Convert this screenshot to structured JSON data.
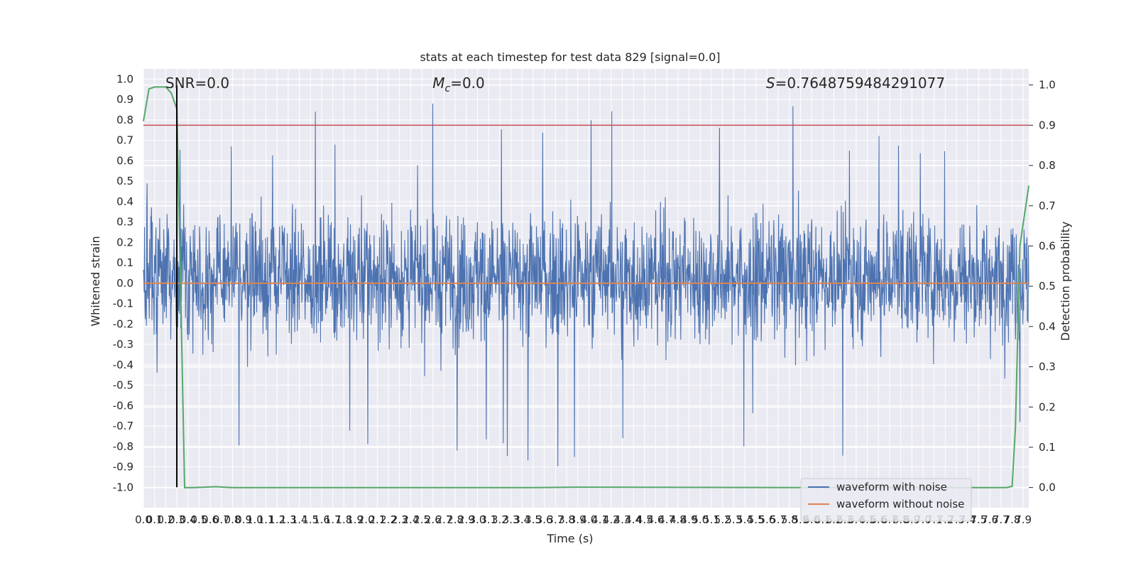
{
  "chart_data": {
    "type": "line",
    "title": "stats at each timestep for test data 829 [signal=0.0]",
    "xlabel": "Time (s)",
    "ylabel_left": "Whitened strain",
    "ylabel_right": "Detection probability",
    "xlim": [
      0.0,
      7.95
    ],
    "ylim_left": [
      -1.1,
      1.05
    ],
    "ylim_right": [
      -0.05,
      1.04
    ],
    "x_ticks": [
      "0.0",
      "0.1",
      "0.2",
      "0.3",
      "0.4",
      "0.5",
      "0.6",
      "0.7",
      "0.8",
      "0.9",
      "1.0",
      "1.1",
      "1.2",
      "1.3",
      "1.4",
      "1.5",
      "1.6",
      "1.7",
      "1.8",
      "1.9",
      "2.0",
      "2.1",
      "2.2",
      "2.3",
      "2.4",
      "2.5",
      "2.6",
      "2.7",
      "2.8",
      "2.9",
      "3.0",
      "3.1",
      "3.2",
      "3.3",
      "3.4",
      "3.5",
      "3.6",
      "3.7",
      "3.8",
      "3.9",
      "4.0",
      "4.1",
      "4.2",
      "4.3",
      "4.4",
      "4.5",
      "4.6",
      "4.7",
      "4.8",
      "4.9",
      "5.0",
      "5.1",
      "5.2",
      "5.3",
      "5.4",
      "5.5",
      "5.6",
      "5.7",
      "5.8",
      "5.9",
      "6.0",
      "6.1",
      "6.2",
      "6.3",
      "6.4",
      "6.5",
      "6.6",
      "6.7",
      "6.8",
      "6.9",
      "7.0",
      "7.1",
      "7.2",
      "7.3",
      "7.4",
      "7.5",
      "7.6",
      "7.7",
      "7.8",
      "7.9"
    ],
    "y_ticks_left": [
      "1.0",
      "0.9",
      "0.8",
      "0.7",
      "0.6",
      "0.5",
      "0.4",
      "0.3",
      "0.2",
      "0.1",
      "0.0",
      "-0.1",
      "-0.2",
      "-0.3",
      "-0.4",
      "-0.5",
      "-0.6",
      "-0.7",
      "-0.8",
      "-0.9",
      "-1.0"
    ],
    "y_ticks_right": [
      "1.0",
      "0.9",
      "0.8",
      "0.7",
      "0.6",
      "0.5",
      "0.4",
      "0.3",
      "0.2",
      "0.1",
      "0.0"
    ],
    "annotations": {
      "snr": "SNR=0.0",
      "mc_symbol": "M",
      "mc_subscript": "c",
      "mc_value": "=0.0",
      "s_symbol": "S",
      "s_value": "=0.7648759484291077"
    },
    "threshold_line": {
      "axis": "right",
      "y": 0.9,
      "color": "#c44e52"
    },
    "marker_line": {
      "x": 0.3,
      "y_range": [
        -1.0,
        0.97
      ],
      "color": "#000000"
    },
    "series": [
      {
        "name": "waveform with noise",
        "axis": "left",
        "color": "#4c72b0",
        "description_values": {
          "typical_range": [
            -0.5,
            0.6
          ],
          "max": 0.94,
          "min": -0.97
        }
      },
      {
        "name": "waveform without noise",
        "axis": "left",
        "color": "#dd8452",
        "values_constant": 0.0
      },
      {
        "name": "",
        "axis": "right",
        "color": "#55a868",
        "x": [
          0.0,
          0.05,
          0.1,
          0.2,
          0.25,
          0.3,
          0.33,
          0.37,
          0.45,
          0.65,
          0.8,
          1.5,
          3.5,
          3.9,
          6.0,
          7.7,
          7.75,
          7.8,
          7.83,
          7.87,
          7.95
        ],
        "y": [
          0.91,
          0.99,
          0.995,
          0.995,
          0.98,
          0.94,
          0.55,
          0.0,
          0.0,
          0.002,
          0.0,
          0.0,
          0.0,
          0.001,
          0.0,
          0.0,
          0.0,
          0.003,
          0.15,
          0.6,
          0.75
        ]
      }
    ],
    "legend": {
      "location": "bottom-right",
      "entries": [
        "waveform with noise",
        "waveform without noise"
      ]
    },
    "style": {
      "background": "#eaeaf2",
      "grid": true,
      "grid_color": "#ffffff"
    }
  }
}
